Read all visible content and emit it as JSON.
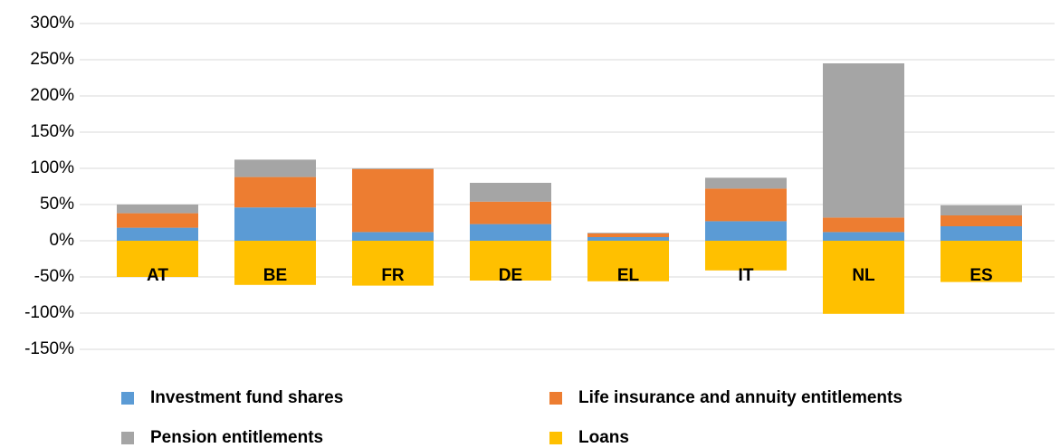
{
  "chart_data": {
    "type": "stacked-bar",
    "categories": [
      "AT",
      "BE",
      "FR",
      "DE",
      "EL",
      "IT",
      "NL",
      "ES"
    ],
    "series": [
      {
        "name": "Investment fund shares",
        "color": "#5b9bd5",
        "values": [
          18,
          46,
          12,
          23,
          5,
          27,
          12,
          20
        ]
      },
      {
        "name": "Life insurance and annuity entitlements",
        "color": "#ed7d31",
        "values": [
          20,
          42,
          87,
          31,
          5,
          45,
          20,
          15
        ]
      },
      {
        "name": "Pension entitlements",
        "color": "#a5a5a5",
        "values": [
          12,
          24,
          1,
          26,
          1,
          15,
          213,
          14
        ]
      },
      {
        "name": "Loans",
        "color": "#ffc000",
        "values": [
          -50,
          -61,
          -62,
          -55,
          -56,
          -41,
          -101,
          -57
        ]
      }
    ],
    "ylim": [
      -150,
      300
    ],
    "yticks": [
      {
        "value": -150,
        "label": "-150%"
      },
      {
        "value": -100,
        "label": "-100%"
      },
      {
        "value": -50,
        "label": "-50%"
      },
      {
        "value": 0,
        "label": "0%"
      },
      {
        "value": 50,
        "label": "50%"
      },
      {
        "value": 100,
        "label": "100%"
      },
      {
        "value": 150,
        "label": "150%"
      },
      {
        "value": 200,
        "label": "200%"
      },
      {
        "value": 250,
        "label": "250%"
      },
      {
        "value": 300,
        "label": "300%"
      }
    ],
    "grid": true,
    "legend": "bottom"
  }
}
